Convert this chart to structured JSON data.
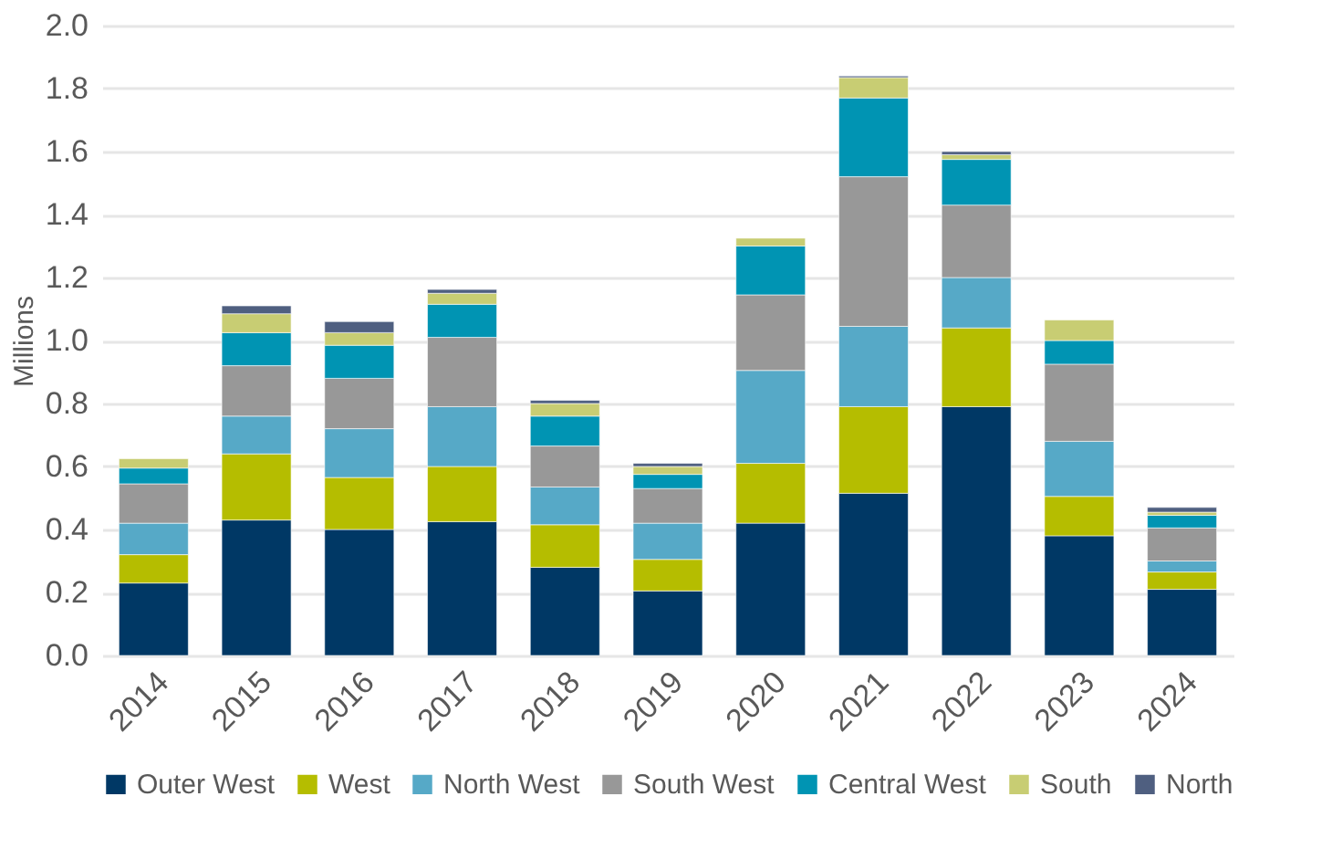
{
  "chart_data": {
    "type": "bar",
    "stacked": true,
    "ylabel": "Millions",
    "categories": [
      "2014",
      "2015",
      "2016",
      "2017",
      "2018",
      "2019",
      "2020",
      "2021",
      "2022",
      "2023",
      "2024"
    ],
    "series": [
      {
        "name": "Outer West",
        "color": "#003865",
        "values": [
          0.23,
          0.43,
          0.4,
          0.425,
          0.28,
          0.205,
          0.42,
          0.515,
          0.79,
          0.38,
          0.21
        ]
      },
      {
        "name": "West",
        "color": "#b5bd00",
        "values": [
          0.09,
          0.21,
          0.165,
          0.175,
          0.135,
          0.1,
          0.19,
          0.275,
          0.25,
          0.125,
          0.055
        ]
      },
      {
        "name": "North West",
        "color": "#56a9c7",
        "values": [
          0.1,
          0.12,
          0.155,
          0.19,
          0.12,
          0.115,
          0.295,
          0.255,
          0.16,
          0.175,
          0.035
        ]
      },
      {
        "name": "South West",
        "color": "#989898",
        "values": [
          0.125,
          0.16,
          0.16,
          0.22,
          0.13,
          0.11,
          0.24,
          0.475,
          0.23,
          0.245,
          0.105
        ]
      },
      {
        "name": "Central West",
        "color": "#0094b3",
        "values": [
          0.05,
          0.105,
          0.105,
          0.105,
          0.095,
          0.045,
          0.155,
          0.25,
          0.145,
          0.075,
          0.04
        ]
      },
      {
        "name": "South",
        "color": "#c8cd73",
        "values": [
          0.03,
          0.06,
          0.04,
          0.035,
          0.04,
          0.025,
          0.025,
          0.065,
          0.015,
          0.065,
          0.01
        ]
      },
      {
        "name": "North",
        "color": "#4f5f80",
        "values": [
          null,
          0.025,
          0.035,
          0.012,
          0.01,
          0.01,
          null,
          0.005,
          0.01,
          null,
          0.015
        ]
      }
    ],
    "ylim": [
      0,
      2
    ],
    "yticks": [
      {
        "value": 0,
        "label": "0.0"
      },
      {
        "value": 0.2,
        "label": "0.2"
      },
      {
        "value": 0.4,
        "label": "0.4"
      },
      {
        "value": 0.6,
        "label": "0.6"
      },
      {
        "value": 0.8,
        "label": "0.8"
      },
      {
        "value": 1,
        "label": "1.0"
      },
      {
        "value": 1.2,
        "label": "1.2"
      },
      {
        "value": 1.4,
        "label": "1.4"
      },
      {
        "value": 1.6,
        "label": "1.6"
      },
      {
        "value": 1.8,
        "label": "1.8"
      },
      {
        "value": 2,
        "label": "2.0"
      }
    ],
    "grid": "y",
    "legend": "bottom"
  }
}
